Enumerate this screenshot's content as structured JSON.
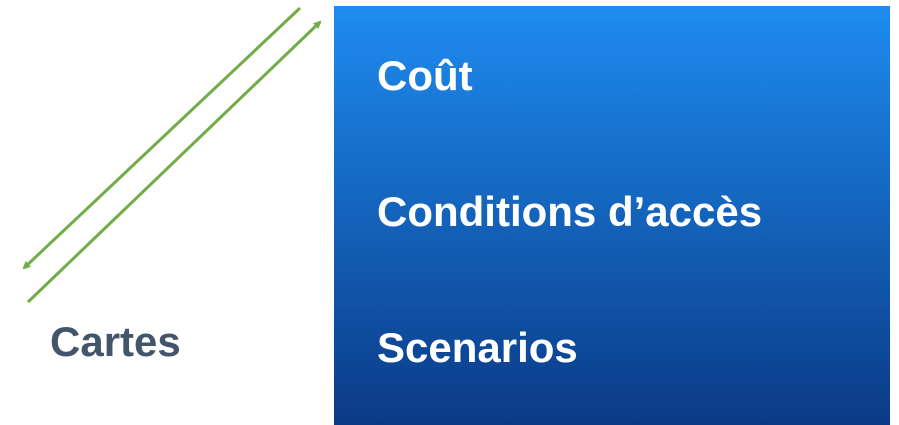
{
  "label": "Cartes",
  "box": {
    "items": [
      "Coût",
      "Conditions d’accès",
      "Scenarios"
    ]
  }
}
